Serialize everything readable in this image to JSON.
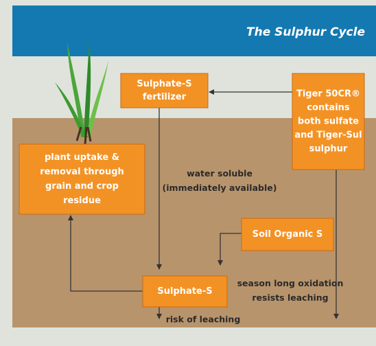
{
  "header": {
    "title": "The Sulphur Cycle"
  },
  "nodes": [
    {
      "lines": [
        "Sulphate-S",
        "fertilizer"
      ]
    },
    {
      "lines": [
        "Tiger 50CR®",
        "contains",
        "both sulfate",
        "and Tiger-Sul",
        "sulphur"
      ]
    },
    {
      "lines": [
        "plant uptake &",
        "removal through",
        "grain and crop",
        "residue"
      ]
    },
    {
      "lines": [
        "Soil Organic S"
      ]
    },
    {
      "lines": [
        "Sulphate-S"
      ]
    }
  ],
  "labels": [
    {
      "lines": [
        "water soluble",
        "(immediately available)"
      ]
    },
    {
      "lines": [
        "season long oxidation",
        "resists leaching"
      ]
    },
    {
      "lines": [
        "risk of leaching"
      ]
    }
  ]
}
